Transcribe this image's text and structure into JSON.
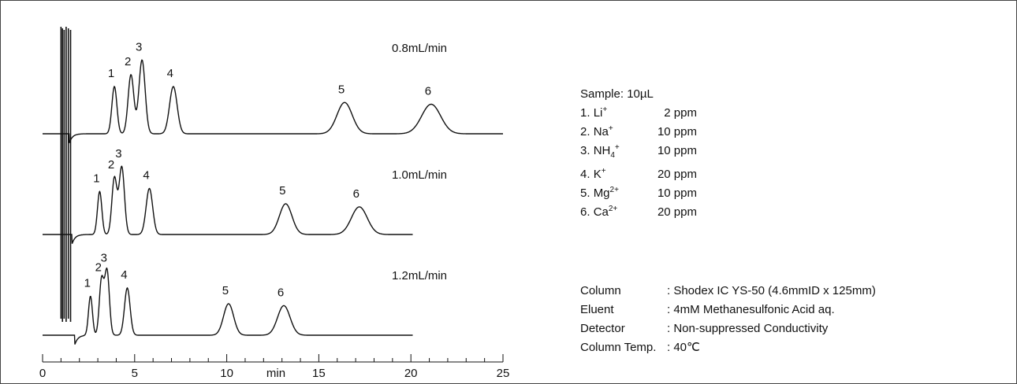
{
  "sample": {
    "title": "Sample: 10µL",
    "peaks": [
      {
        "num": "1.",
        "ion": "Li",
        "sup": "+",
        "sub": "",
        "conc": "2 ppm"
      },
      {
        "num": "2.",
        "ion": "Na",
        "sup": "+",
        "sub": "",
        "conc": "10 ppm"
      },
      {
        "num": "3.",
        "ion": "NH",
        "sup": "+",
        "sub": "4",
        "conc": "10 ppm"
      },
      {
        "num": "4.",
        "ion": "K",
        "sup": "+",
        "sub": "",
        "conc": "20 ppm"
      },
      {
        "num": "5.",
        "ion": "Mg",
        "sup": "2+",
        "sub": "",
        "conc": "10 ppm"
      },
      {
        "num": "6.",
        "ion": "Ca",
        "sup": "2+",
        "sub": "",
        "conc": "20 ppm"
      }
    ]
  },
  "conditions": [
    {
      "key": "Column",
      "value": ": Shodex IC YS-50 (4.6mmID x 125mm)"
    },
    {
      "key": "Eluent",
      "value": ": 4mM Methanesulfonic Acid aq."
    },
    {
      "key": "Detector",
      "value": ": Non-suppressed Conductivity"
    },
    {
      "key": "Column Temp.",
      "value": ": 40℃"
    }
  ],
  "chart_data": {
    "type": "line",
    "xlabel": "min",
    "xlim": [
      0,
      25
    ],
    "x_ticks": [
      0,
      5,
      10,
      15,
      20,
      25
    ],
    "x_end": 20.1,
    "series": [
      {
        "name": "0.8mL/min",
        "peaks": [
          {
            "label": "1",
            "rt": 3.9,
            "height": 0.8
          },
          {
            "label": "2",
            "rt": 4.8,
            "height": 1.0
          },
          {
            "label": "3",
            "rt": 5.4,
            "height": 1.25
          },
          {
            "label": "4",
            "rt": 7.1,
            "height": 0.8
          },
          {
            "label": "5",
            "rt": 16.4,
            "height": 0.53
          },
          {
            "label": "6",
            "rt": 21.1,
            "height": 0.5
          }
        ]
      },
      {
        "name": "1.0mL/min",
        "peaks": [
          {
            "label": "1",
            "rt": 3.1,
            "height": 0.7
          },
          {
            "label": "2",
            "rt": 3.9,
            "height": 0.92
          },
          {
            "label": "3",
            "rt": 4.3,
            "height": 1.1
          },
          {
            "label": "4",
            "rt": 5.8,
            "height": 0.75
          },
          {
            "label": "5",
            "rt": 13.2,
            "height": 0.5
          },
          {
            "label": "6",
            "rt": 17.2,
            "height": 0.45
          }
        ]
      },
      {
        "name": "1.2mL/min",
        "peaks": [
          {
            "label": "1",
            "rt": 2.6,
            "height": 0.62
          },
          {
            "label": "2",
            "rt": 3.2,
            "height": 0.87
          },
          {
            "label": "3",
            "rt": 3.5,
            "height": 1.02
          },
          {
            "label": "4",
            "rt": 4.6,
            "height": 0.75
          },
          {
            "label": "5",
            "rt": 10.1,
            "height": 0.5
          },
          {
            "label": "6",
            "rt": 13.1,
            "height": 0.47
          }
        ]
      }
    ]
  }
}
